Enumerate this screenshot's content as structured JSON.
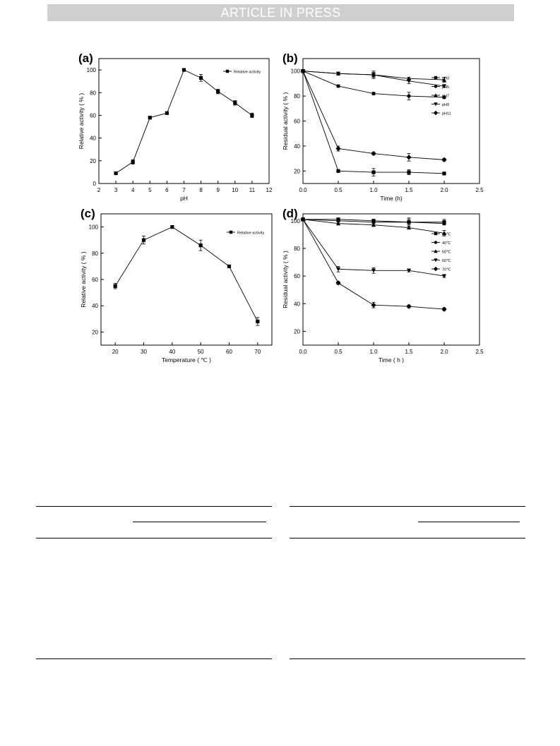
{
  "banner": "ARTICLE IN PRESS",
  "chart_data": [
    {
      "panel": "(a)",
      "type": "line",
      "xlabel": "pH",
      "ylabel": "Relative activity ( % )",
      "xlim": [
        2,
        12
      ],
      "ylim": [
        0,
        110
      ],
      "xticks": [
        2,
        3,
        4,
        5,
        6,
        7,
        8,
        9,
        10,
        11,
        12
      ],
      "yticks": [
        0,
        20,
        40,
        60,
        80,
        100
      ],
      "xtick_labels": [
        "2",
        "3",
        "4",
        "5",
        "6",
        "7",
        "8",
        "9",
        "10",
        "11",
        "12"
      ],
      "ytick_labels": [
        "0",
        "20",
        "40",
        "60",
        "80",
        "100"
      ],
      "legend_position": "top-right",
      "series": [
        {
          "name": "Relative activity",
          "marker": "square",
          "x": [
            3,
            4,
            5,
            6,
            7,
            8,
            9,
            10,
            11
          ],
          "y": [
            9,
            19,
            58,
            62,
            100,
            93,
            81,
            71,
            60
          ],
          "err": [
            1,
            2,
            1,
            1,
            1,
            3,
            2,
            2,
            2
          ]
        }
      ]
    },
    {
      "panel": "(b)",
      "type": "line",
      "xlabel": "Time (h)",
      "ylabel": "Residual activity ( % )",
      "xlim": [
        0,
        2.5
      ],
      "ylim": [
        10,
        110
      ],
      "xticks": [
        0,
        0.5,
        1,
        1.5,
        2,
        2.5
      ],
      "yticks": [
        20,
        40,
        60,
        80,
        100
      ],
      "xtick_labels": [
        "0.0",
        "0.5",
        "1.0",
        "1.5",
        "2.0",
        "2.5"
      ],
      "ytick_labels": [
        "20",
        "40",
        "60",
        "80",
        "100"
      ],
      "legend_position": "top-right",
      "series": [
        {
          "name": "pH3",
          "marker": "square",
          "x": [
            0,
            0.5,
            1,
            1.5,
            2
          ],
          "y": [
            100,
            20,
            19,
            19,
            18
          ],
          "err": [
            0,
            1,
            3,
            2,
            1
          ]
        },
        {
          "name": "pH5",
          "marker": "circle",
          "x": [
            0,
            0.5,
            1,
            1.5,
            2
          ],
          "y": [
            100,
            88,
            82,
            80,
            79
          ],
          "err": [
            0,
            1,
            1,
            3,
            1
          ]
        },
        {
          "name": "pH7",
          "marker": "triangle-up",
          "x": [
            0,
            0.5,
            1,
            1.5,
            2
          ],
          "y": [
            100,
            98,
            97,
            94,
            93
          ],
          "err": [
            0,
            1,
            3,
            1,
            2
          ]
        },
        {
          "name": "pH9",
          "marker": "triangle-down",
          "x": [
            0,
            0.5,
            1,
            1.5,
            2
          ],
          "y": [
            100,
            98,
            97,
            92,
            88
          ],
          "err": [
            0,
            1,
            2,
            2,
            1
          ]
        },
        {
          "name": "pH11",
          "marker": "diamond",
          "x": [
            0,
            0.5,
            1,
            1.5,
            2
          ],
          "y": [
            100,
            38,
            34,
            31,
            29
          ],
          "err": [
            0,
            2,
            1,
            3,
            1
          ]
        }
      ]
    },
    {
      "panel": "(c)",
      "type": "line",
      "xlabel": "Temperature ( ℃ )",
      "ylabel": "Relative activity ( % )",
      "xlim": [
        15,
        75
      ],
      "ylim": [
        10,
        110
      ],
      "xticks": [
        20,
        30,
        40,
        50,
        60,
        70
      ],
      "yticks": [
        20,
        40,
        60,
        80,
        100
      ],
      "xtick_labels": [
        "20",
        "30",
        "40",
        "50",
        "60",
        "70"
      ],
      "ytick_labels": [
        "20",
        "40",
        "60",
        "80",
        "100"
      ],
      "legend_position": "top-right",
      "series": [
        {
          "name": "Relative activity",
          "marker": "square",
          "x": [
            20,
            30,
            40,
            50,
            60,
            70
          ],
          "y": [
            55,
            90,
            100,
            86,
            70,
            28
          ],
          "err": [
            2,
            3,
            1,
            4,
            1,
            3
          ]
        }
      ]
    },
    {
      "panel": "(d)",
      "type": "line",
      "xlabel": "Time ( h )",
      "ylabel": "Residual activity ( % )",
      "xlim": [
        0,
        2.5
      ],
      "ylim": [
        10,
        105
      ],
      "xticks": [
        0,
        0.5,
        1,
        1.5,
        2,
        2.5
      ],
      "yticks": [
        20,
        40,
        60,
        80,
        100
      ],
      "xtick_labels": [
        "0.0",
        "0.5",
        "1.0",
        "1.5",
        "2.0",
        "2.5"
      ],
      "ytick_labels": [
        "20",
        "40",
        "60",
        "80",
        "100"
      ],
      "legend_position": "top-right",
      "series": [
        {
          "name": "30℃",
          "marker": "square",
          "x": [
            0,
            0.5,
            1,
            1.5,
            2
          ],
          "y": [
            101,
            101,
            100,
            99,
            99
          ],
          "err": [
            0,
            1,
            1,
            3,
            2
          ]
        },
        {
          "name": "40℃",
          "marker": "circle",
          "x": [
            0,
            0.5,
            1,
            1.5,
            2
          ],
          "y": [
            101,
            100,
            99,
            99,
            98
          ],
          "err": [
            0,
            1,
            1,
            2,
            1
          ]
        },
        {
          "name": "50℃",
          "marker": "triangle-up",
          "x": [
            0,
            0.5,
            1,
            1.5,
            2
          ],
          "y": [
            101,
            98,
            97,
            95,
            91
          ],
          "err": [
            0,
            1,
            1,
            1,
            2
          ]
        },
        {
          "name": "60℃",
          "marker": "triangle-down",
          "x": [
            0,
            0.5,
            1,
            1.5,
            2
          ],
          "y": [
            101,
            65,
            64,
            64,
            60
          ],
          "err": [
            0,
            2,
            2,
            1,
            1
          ]
        },
        {
          "name": "70℃",
          "marker": "diamond",
          "x": [
            0,
            0.5,
            1,
            1.5,
            2
          ],
          "y": [
            101,
            55,
            39,
            38,
            36
          ],
          "err": [
            0,
            1,
            2,
            1,
            1
          ]
        }
      ]
    }
  ]
}
